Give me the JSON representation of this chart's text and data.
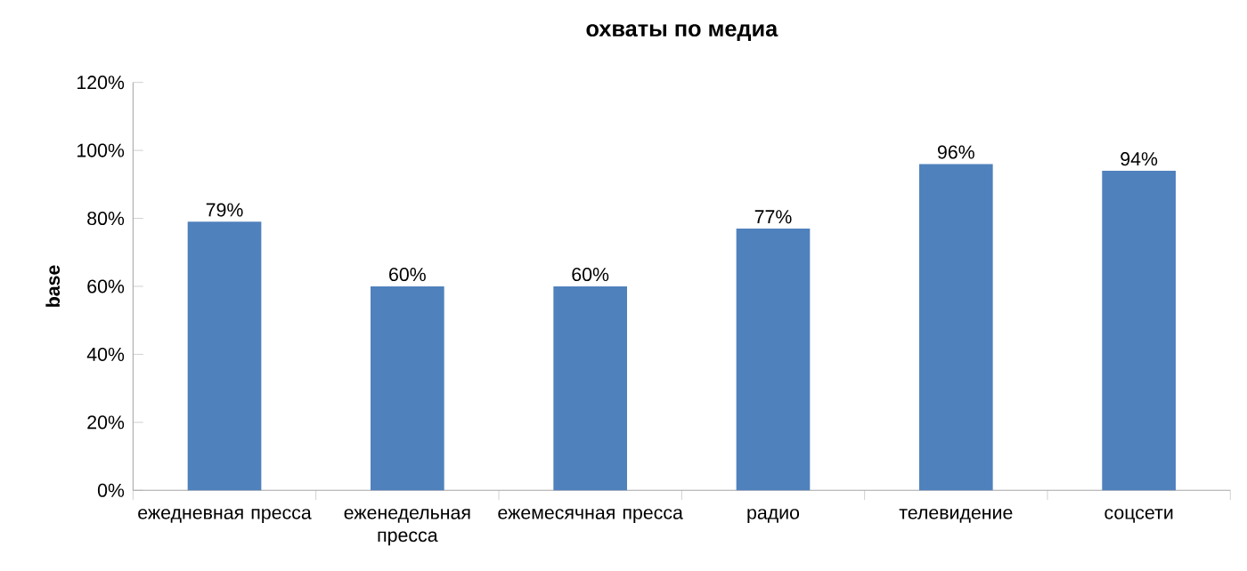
{
  "chart_data": {
    "type": "bar",
    "title": "охваты по медиа",
    "ylabel": "base",
    "categories": [
      "ежедневная пресса",
      "еженедельная пресса",
      "ежемесячная пресса",
      "радио",
      "телевидение",
      "соцсети"
    ],
    "values": [
      79,
      60,
      60,
      77,
      96,
      94
    ],
    "value_labels": [
      "79%",
      "60%",
      "60%",
      "77%",
      "96%",
      "94%"
    ],
    "color": "#4f81bd",
    "ylim": [
      0,
      120
    ],
    "yticks": [
      {
        "value": 0,
        "label": "0%"
      },
      {
        "value": 20,
        "label": "20%"
      },
      {
        "value": 40,
        "label": "40%"
      },
      {
        "value": 60,
        "label": "60%"
      },
      {
        "value": 80,
        "label": "80%"
      },
      {
        "value": 100,
        "label": "100%"
      },
      {
        "value": 120,
        "label": "120%"
      }
    ]
  }
}
